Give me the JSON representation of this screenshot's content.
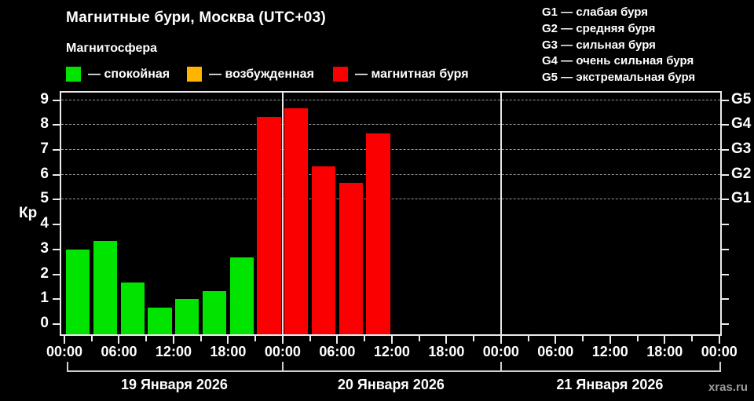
{
  "header": {
    "title": "Магнитные бури, Москва (UTC+03)",
    "subtitle": "Магнитосфера"
  },
  "legend": {
    "items": [
      {
        "label": "— спокойная",
        "color": "#00e400",
        "level": "quiet"
      },
      {
        "label": "— возбужденная",
        "color": "#ffb400",
        "level": "excited"
      },
      {
        "label": "— магнитная буря",
        "color": "#fb0000",
        "level": "storm"
      }
    ]
  },
  "storm_scale_legend": {
    "items": [
      "G1 — слабая буря",
      "G2 — средняя буря",
      "G3 — сильная буря",
      "G4 — очень сильная буря",
      "G5 — экстремальная буря"
    ]
  },
  "colors": {
    "quiet": "#00e400",
    "excited": "#ffb400",
    "storm": "#fb0000",
    "axis": "#ececec",
    "gridline": "#9a9a9a",
    "watermark": "#9a9a9a",
    "background": "#000000"
  },
  "watermark": "xras.ru",
  "chart_data": {
    "type": "bar",
    "title": "Магнитные бури, Москва (UTC+03)",
    "ylabel": "Кр",
    "ylim": [
      0,
      9
    ],
    "yticks": [
      0,
      1,
      2,
      3,
      4,
      5,
      6,
      7,
      8,
      9
    ],
    "gridlines_kp": [
      5,
      6,
      7,
      8,
      9
    ],
    "grid": "dashed horizontal at G-storm levels only",
    "legend_position": "top",
    "right_axis_labels": [
      {
        "label": "G1",
        "kp": 5
      },
      {
        "label": "G2",
        "kp": 6
      },
      {
        "label": "G3",
        "kp": 7
      },
      {
        "label": "G4",
        "kp": 8
      },
      {
        "label": "G5",
        "kp": 9
      }
    ],
    "x_total_hours": 72,
    "minor_tick_step_hours": 3,
    "xticks": [
      {
        "hour": 0,
        "label": "00:00"
      },
      {
        "hour": 6,
        "label": "06:00"
      },
      {
        "hour": 12,
        "label": "12:00"
      },
      {
        "hour": 18,
        "label": "18:00"
      },
      {
        "hour": 24,
        "label": "00:00"
      },
      {
        "hour": 30,
        "label": "06:00"
      },
      {
        "hour": 36,
        "label": "12:00"
      },
      {
        "hour": 42,
        "label": "18:00"
      },
      {
        "hour": 48,
        "label": "00:00"
      },
      {
        "hour": 54,
        "label": "06:00"
      },
      {
        "hour": 60,
        "label": "12:00"
      },
      {
        "hour": 66,
        "label": "18:00"
      },
      {
        "hour": 72,
        "label": "00:00"
      }
    ],
    "days": [
      {
        "label": "19 Января 2026",
        "start_hour": 0,
        "end_hour": 24
      },
      {
        "label": "20 Января 2026",
        "start_hour": 24,
        "end_hour": 48
      },
      {
        "label": "21 Января 2026",
        "start_hour": 48,
        "end_hour": 72
      }
    ],
    "bars": [
      {
        "start_hour": 0,
        "duration_hours": 3,
        "kp": 3.0,
        "level": "quiet",
        "status": "спокойная"
      },
      {
        "start_hour": 3,
        "duration_hours": 3,
        "kp": 3.33,
        "level": "quiet",
        "status": "спокойная"
      },
      {
        "start_hour": 6,
        "duration_hours": 3,
        "kp": 1.67,
        "level": "quiet",
        "status": "спокойная"
      },
      {
        "start_hour": 9,
        "duration_hours": 3,
        "kp": 0.67,
        "level": "quiet",
        "status": "спокойная"
      },
      {
        "start_hour": 12,
        "duration_hours": 3,
        "kp": 1.0,
        "level": "quiet",
        "status": "спокойная"
      },
      {
        "start_hour": 15,
        "duration_hours": 3,
        "kp": 1.33,
        "level": "quiet",
        "status": "спокойная"
      },
      {
        "start_hour": 18,
        "duration_hours": 3,
        "kp": 2.67,
        "level": "quiet",
        "status": "спокойная"
      },
      {
        "start_hour": 21,
        "duration_hours": 3,
        "kp": 8.33,
        "level": "storm",
        "status": "магнитная буря"
      },
      {
        "start_hour": 24,
        "duration_hours": 3,
        "kp": 8.67,
        "level": "storm",
        "status": "магнитная буря"
      },
      {
        "start_hour": 27,
        "duration_hours": 3,
        "kp": 6.33,
        "level": "storm",
        "status": "магнитная буря"
      },
      {
        "start_hour": 30,
        "duration_hours": 3,
        "kp": 5.67,
        "level": "storm",
        "status": "магнитная буря"
      },
      {
        "start_hour": 33,
        "duration_hours": 3,
        "kp": 7.67,
        "level": "storm",
        "status": "магнитная буря"
      }
    ]
  }
}
